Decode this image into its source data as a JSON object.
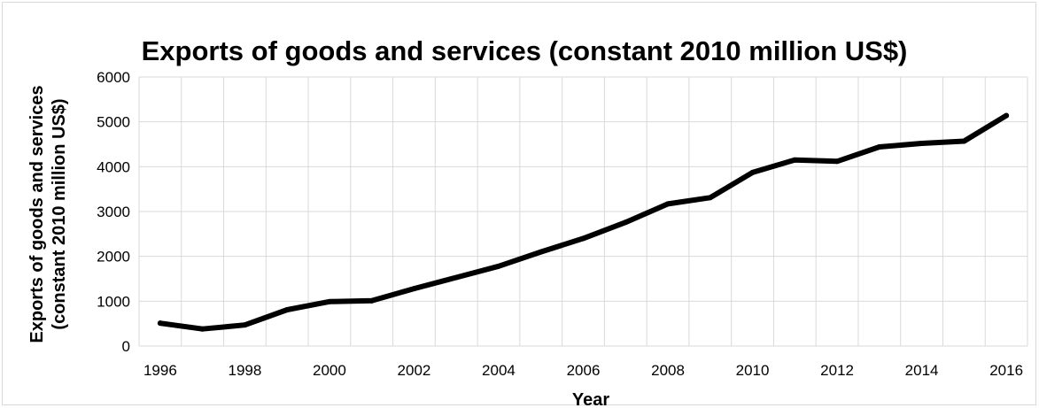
{
  "chart_data": {
    "type": "line",
    "title": "Exports of goods and services (constant 2010 million US$)",
    "xlabel": "Year",
    "ylabel_line1": "Exports of goods and services",
    "ylabel_line2": "(constant 2010 million US$)",
    "ylim": [
      0,
      6000
    ],
    "yticks": [
      0,
      1000,
      2000,
      3000,
      4000,
      5000,
      6000
    ],
    "xticks": [
      1996,
      1998,
      2000,
      2002,
      2004,
      2006,
      2008,
      2010,
      2012,
      2014,
      2016
    ],
    "grid": true,
    "series": [
      {
        "x": [
          1996,
          1997,
          1998,
          1999,
          2000,
          2001,
          2002,
          2003,
          2004,
          2005,
          2006,
          2007,
          2008,
          2009,
          2010,
          2011,
          2012,
          2013,
          2014,
          2015,
          2016
        ],
        "values": [
          510,
          380,
          470,
          810,
          990,
          1010,
          1280,
          1530,
          1780,
          2100,
          2400,
          2760,
          3170,
          3310,
          3870,
          4150,
          4120,
          4440,
          4520,
          4570,
          5140
        ]
      }
    ]
  }
}
